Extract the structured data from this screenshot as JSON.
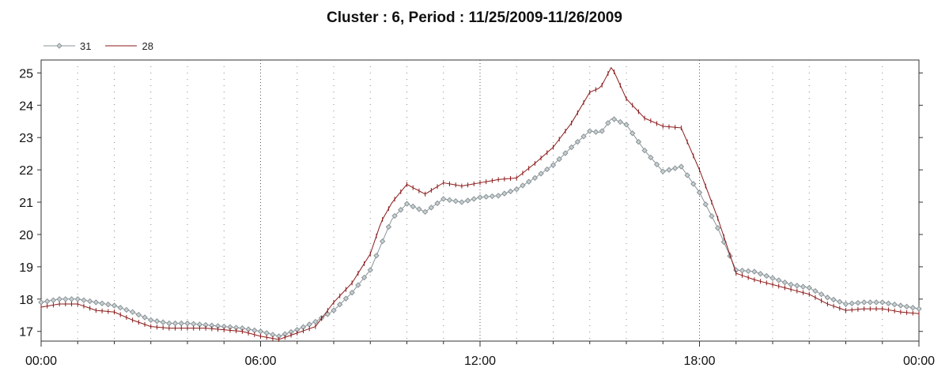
{
  "chart_data": {
    "type": "line",
    "title": "Cluster : 6, Period : 11/25/2009-11/26/2009",
    "xlabel": "",
    "ylabel": "",
    "x_range_hours": [
      0,
      24
    ],
    "ylim": [
      16.7,
      25.4
    ],
    "x_tick_labels": [
      "00:00",
      "06:00",
      "12:00",
      "18:00",
      "00:00"
    ],
    "y_ticks": [
      17,
      18,
      19,
      20,
      21,
      22,
      23,
      24,
      25
    ],
    "grid": "vertical dotted",
    "legend_position": "top-left",
    "series": [
      {
        "name": "31",
        "color": "#8a9498",
        "marker": "diamond",
        "x_hours": [
          0,
          0.5,
          1,
          1.5,
          2,
          2.5,
          3,
          3.5,
          4,
          4.5,
          5,
          5.5,
          6,
          6.5,
          7,
          7.5,
          8,
          8.5,
          9,
          9.3,
          9.6,
          10,
          10.5,
          11,
          11.5,
          12,
          12.5,
          13,
          13.5,
          14,
          14.5,
          15,
          15.3,
          15.6,
          16,
          16.5,
          17,
          17.5,
          18,
          18.5,
          19,
          19.5,
          20,
          20.5,
          21,
          21.5,
          22,
          22.5,
          23,
          23.5,
          24
        ],
        "values": [
          17.9,
          18.0,
          18.0,
          17.9,
          17.8,
          17.6,
          17.35,
          17.25,
          17.25,
          17.2,
          17.15,
          17.1,
          17.0,
          16.85,
          17.05,
          17.3,
          17.65,
          18.2,
          18.9,
          19.7,
          20.5,
          20.95,
          20.7,
          21.1,
          21.0,
          21.15,
          21.2,
          21.4,
          21.75,
          22.15,
          22.7,
          23.2,
          23.15,
          23.6,
          23.4,
          22.6,
          21.95,
          22.1,
          21.3,
          20.2,
          18.9,
          18.85,
          18.65,
          18.45,
          18.35,
          18.05,
          17.85,
          17.9,
          17.9,
          17.8,
          17.7
        ]
      },
      {
        "name": "28",
        "color": "#8b1a1a",
        "marker": "plus",
        "x_hours": [
          0,
          0.5,
          1,
          1.5,
          2,
          2.5,
          3,
          3.5,
          4,
          4.5,
          5,
          5.5,
          6,
          6.5,
          7,
          7.5,
          8,
          8.5,
          9,
          9.3,
          9.6,
          10,
          10.5,
          11,
          11.5,
          12,
          12.5,
          13,
          13.5,
          14,
          14.5,
          15,
          15.3,
          15.6,
          16,
          16.5,
          17,
          17.5,
          18,
          18.5,
          19,
          19.5,
          20,
          20.5,
          21,
          21.5,
          22,
          22.5,
          23,
          23.5,
          24
        ],
        "values": [
          17.75,
          17.85,
          17.85,
          17.65,
          17.6,
          17.35,
          17.15,
          17.1,
          17.1,
          17.1,
          17.05,
          17.0,
          16.85,
          16.75,
          16.95,
          17.15,
          17.9,
          18.5,
          19.4,
          20.4,
          21.0,
          21.55,
          21.25,
          21.6,
          21.5,
          21.6,
          21.7,
          21.75,
          22.2,
          22.7,
          23.45,
          24.4,
          24.55,
          25.2,
          24.2,
          23.6,
          23.35,
          23.3,
          22.0,
          20.5,
          18.8,
          18.6,
          18.45,
          18.3,
          18.15,
          17.85,
          17.65,
          17.7,
          17.7,
          17.6,
          17.55
        ]
      }
    ]
  }
}
